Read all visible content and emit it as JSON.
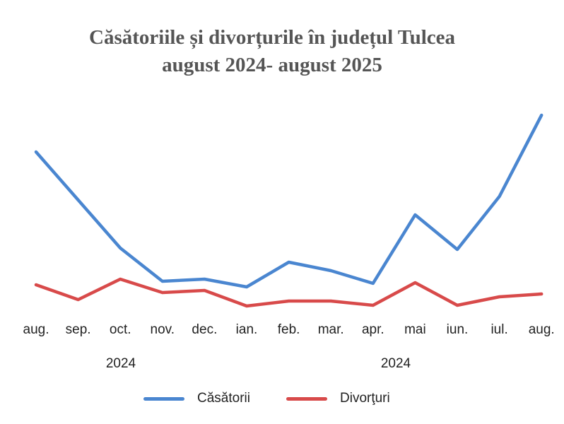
{
  "chart_data": {
    "type": "line",
    "title": "Căsătoriile și divorțurile în județul Tulcea",
    "subtitle": "august 2024- august 2025",
    "categories": [
      "aug.",
      "sep.",
      "oct.",
      "nov.",
      "dec.",
      "ian.",
      "feb.",
      "mar.",
      "apr.",
      "mai",
      "iun.",
      "iul.",
      "aug."
    ],
    "group_labels": [
      {
        "label": "2024",
        "under": "oct."
      },
      {
        "label": "2024",
        "under": "mai"
      }
    ],
    "series": [
      {
        "name": "Căsători",
        "color": "#4a86d0",
        "values": [
          235,
          167,
          99,
          52,
          55,
          44,
          79,
          67,
          49,
          146,
          97,
          172,
          287
        ]
      },
      {
        "name": "Divorţuri",
        "color": "#d84a4a",
        "values": [
          47,
          26,
          55,
          36,
          39,
          17,
          24,
          24,
          18,
          50,
          18,
          30,
          34
        ]
      }
    ],
    "xlabel": "",
    "ylabel": "",
    "y_axis_visible": false,
    "grid": false,
    "legend_position": "bottom",
    "note": "No y-axis scale shown; values are relative estimates from pixel heights."
  },
  "labels": {
    "title_line1": "Căsătoriile și divorțurile în județul Tulcea",
    "title_line2": "august 2024- august 2025",
    "legend_blue": "Căsătorii",
    "legend_red": "Divorţuri",
    "year_left": "2024",
    "year_right": "2024"
  }
}
